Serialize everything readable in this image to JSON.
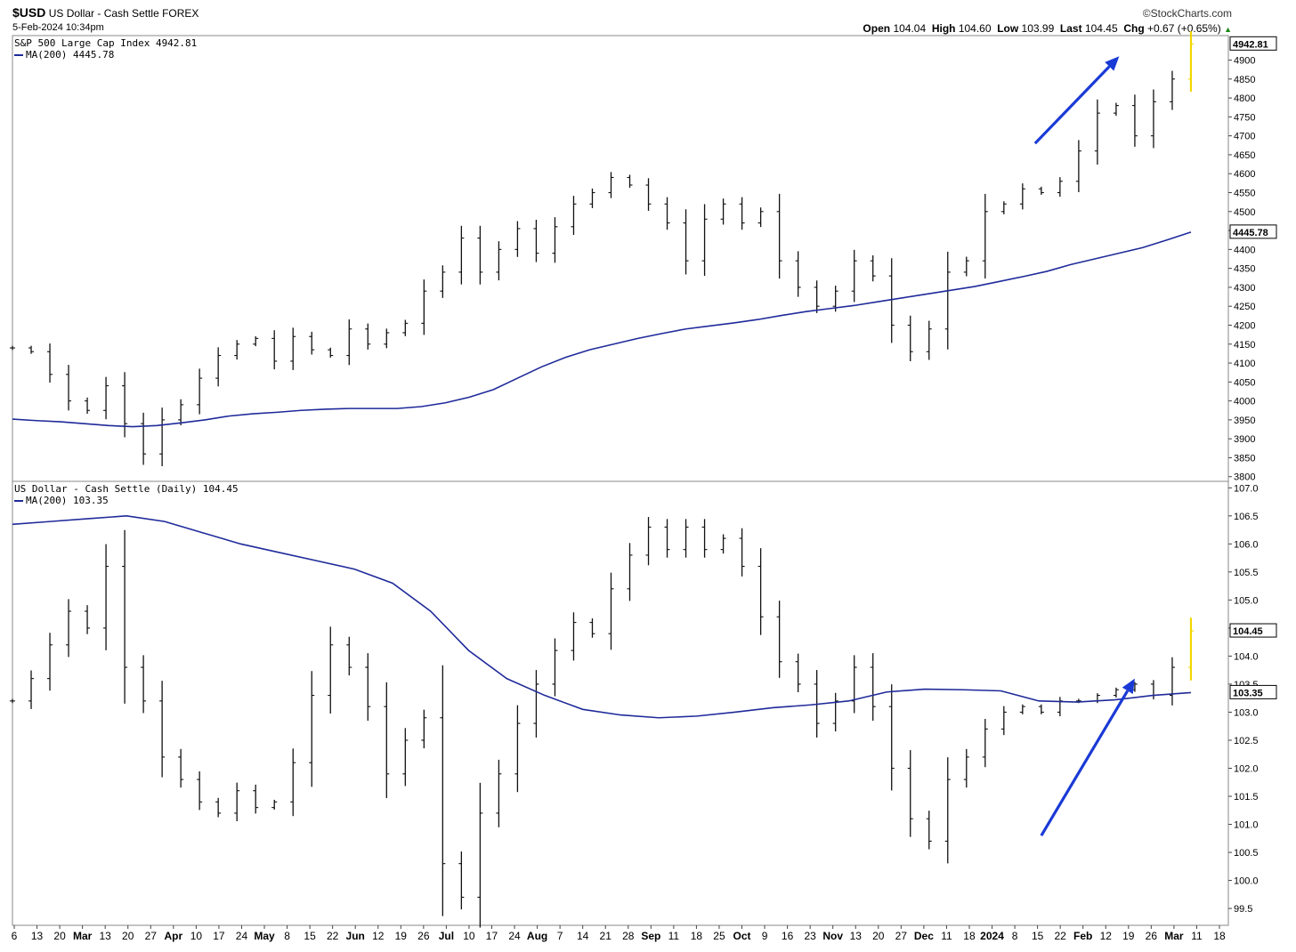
{
  "header": {
    "symbol": "$USD",
    "name": "US Dollar - Cash Settle",
    "exchange": "FOREX",
    "datetime": "5-Feb-2024 10:34pm",
    "brand": "©StockCharts.com",
    "open_label": "Open",
    "open": "104.04",
    "high_label": "High",
    "high": "104.60",
    "low_label": "Low",
    "low": "103.99",
    "last_label": "Last",
    "last": "104.45",
    "chg_label": "Chg",
    "chg": "+0.67 (+0.65%)"
  },
  "colors": {
    "bars": "#111111",
    "ma": "#1f2a9a",
    "arrow": "#1a3ad6",
    "last_bar": "#f2d600",
    "grid": "#dddddd"
  },
  "chart_data": [
    {
      "type": "line",
      "panel": "top",
      "title": "S&P 500 Large Cap Index 4942.81",
      "ma_legend": "MA(200) 4445.78",
      "ylim": [
        3790,
        4960
      ],
      "y_ticks": [
        3800,
        3850,
        3900,
        3950,
        4000,
        4050,
        4100,
        4150,
        4200,
        4250,
        4300,
        4350,
        4400,
        4450,
        4500,
        4550,
        4600,
        4650,
        4700,
        4750,
        4800,
        4850,
        4900
      ],
      "price_label": "4942.81",
      "ma_label": "4445.78",
      "series": [
        {
          "name": "price",
          "style": "ohlc-bars",
          "x": [
            0,
            6,
            12,
            18,
            24,
            30,
            36,
            42,
            48,
            54,
            60,
            66,
            72,
            78,
            84,
            90,
            96,
            102,
            108,
            114,
            120,
            126,
            132,
            138,
            144,
            150,
            156,
            162,
            168,
            174,
            180,
            186,
            192,
            198,
            204,
            210,
            216,
            222,
            228,
            234,
            240,
            246,
            252,
            258,
            264,
            270,
            276,
            282,
            288,
            294,
            300,
            306,
            312,
            318,
            324,
            330,
            336,
            342,
            348,
            354,
            360,
            366,
            372,
            378
          ],
          "values": [
            4140,
            4130,
            4070,
            4000,
            3975,
            4040,
            3940,
            3860,
            3950,
            3990,
            4060,
            4120,
            4150,
            4165,
            4105,
            4170,
            4135,
            4120,
            4190,
            4150,
            4180,
            4205,
            4290,
            4340,
            4430,
            4340,
            4400,
            4455,
            4390,
            4460,
            4520,
            4550,
            4590,
            4570,
            4520,
            4470,
            4370,
            4480,
            4520,
            4470,
            4500,
            4370,
            4300,
            4250,
            4290,
            4370,
            4330,
            4200,
            4130,
            4190,
            4340,
            4370,
            4500,
            4520,
            4560,
            4550,
            4580,
            4660,
            4760,
            4780,
            4700,
            4790,
            4850,
            4942.81
          ],
          "ma": [
            3952,
            3948,
            3945,
            3940,
            3935,
            3932,
            3935,
            3942,
            3950,
            3960,
            3966,
            3970,
            3975,
            3978,
            3980,
            3980,
            3980,
            3985,
            3995,
            4010,
            4030,
            4060,
            4090,
            4115,
            4135,
            4150,
            4165,
            4178,
            4190,
            4198,
            4206,
            4215,
            4226,
            4236,
            4244,
            4252,
            4262,
            4272,
            4282,
            4292,
            4302,
            4315,
            4328,
            4342,
            4360,
            4375,
            4390,
            4405,
            4425,
            4445.78
          ]
        }
      ],
      "annotations": [
        {
          "type": "arrow",
          "from": [
            328,
            4680
          ],
          "to": [
            355,
            4910
          ]
        }
      ]
    },
    {
      "type": "line",
      "panel": "bottom",
      "title": "US Dollar - Cash Settle (Daily) 104.45",
      "ma_legend": "MA(200) 103.35",
      "ylim": [
        99.2,
        107.1
      ],
      "y_ticks": [
        "99.5",
        "100.0",
        "100.5",
        "101.0",
        "101.5",
        "102.0",
        "102.5",
        "103.0",
        "103.5",
        "104.0",
        "104.5",
        "105.0",
        "105.5",
        "106.0",
        "106.5",
        "107.0"
      ],
      "price_label": "104.45",
      "ma_label": "103.35",
      "series": [
        {
          "name": "price",
          "style": "ohlc-bars",
          "x": [
            0,
            6,
            12,
            18,
            24,
            30,
            36,
            42,
            48,
            54,
            60,
            66,
            72,
            78,
            84,
            90,
            96,
            102,
            108,
            114,
            120,
            126,
            132,
            138,
            144,
            150,
            156,
            162,
            168,
            174,
            180,
            186,
            192,
            198,
            204,
            210,
            216,
            222,
            228,
            234,
            240,
            246,
            252,
            258,
            264,
            270,
            276,
            282,
            288,
            294,
            300,
            306,
            312,
            318,
            324,
            330,
            336,
            342,
            348,
            354,
            360,
            366,
            372,
            378
          ],
          "values": [
            103.2,
            103.6,
            104.2,
            104.8,
            104.5,
            105.6,
            103.8,
            103.2,
            102.2,
            101.8,
            101.4,
            101.2,
            101.6,
            101.3,
            101.4,
            102.1,
            103.3,
            104.2,
            103.8,
            103.1,
            101.9,
            102.5,
            102.9,
            100.3,
            99.7,
            101.2,
            101.9,
            102.8,
            103.5,
            104.1,
            104.6,
            104.4,
            105.2,
            105.8,
            106.3,
            105.9,
            106.3,
            105.9,
            106.1,
            105.6,
            104.7,
            103.9,
            103.5,
            102.8,
            103.2,
            103.8,
            103.1,
            102.0,
            101.1,
            100.7,
            101.8,
            102.2,
            102.7,
            103.0,
            103.1,
            103.0,
            103.2,
            103.2,
            103.3,
            103.4,
            103.5,
            103.3,
            103.8,
            104.45
          ],
          "ma": [
            106.35,
            106.4,
            106.45,
            106.5,
            106.4,
            106.2,
            106.0,
            105.85,
            105.7,
            105.55,
            105.3,
            104.8,
            104.1,
            103.6,
            103.3,
            103.05,
            102.95,
            102.9,
            102.93,
            103.0,
            103.08,
            103.13,
            103.2,
            103.36,
            103.41,
            103.4,
            103.38,
            103.2,
            103.18,
            103.22,
            103.3,
            103.35
          ]
        }
      ],
      "annotations": [
        {
          "type": "arrow",
          "from": [
            330,
            100.8
          ],
          "to": [
            360,
            103.6
          ]
        }
      ]
    }
  ],
  "x_axis": {
    "tick_labels": [
      "6",
      "13",
      "20",
      "Mar",
      "13",
      "20",
      "27",
      "Apr",
      "10",
      "17",
      "24",
      "May",
      "8",
      "15",
      "22",
      "Jun",
      "12",
      "19",
      "26",
      "Jul",
      "10",
      "17",
      "24",
      "Aug",
      "7",
      "14",
      "21",
      "28",
      "Sep",
      "11",
      "18",
      "25",
      "Oct",
      "9",
      "16",
      "23",
      "Nov",
      "13",
      "20",
      "27",
      "Dec",
      "11",
      "18",
      "2024",
      "8",
      "15",
      "22",
      "Feb",
      "12",
      "19",
      "26",
      "Mar",
      "11",
      "18"
    ],
    "bold_labels": [
      "Mar",
      "Apr",
      "May",
      "Jun",
      "Jul",
      "Aug",
      "Sep",
      "Oct",
      "Nov",
      "Dec",
      "2024",
      "Feb"
    ]
  }
}
